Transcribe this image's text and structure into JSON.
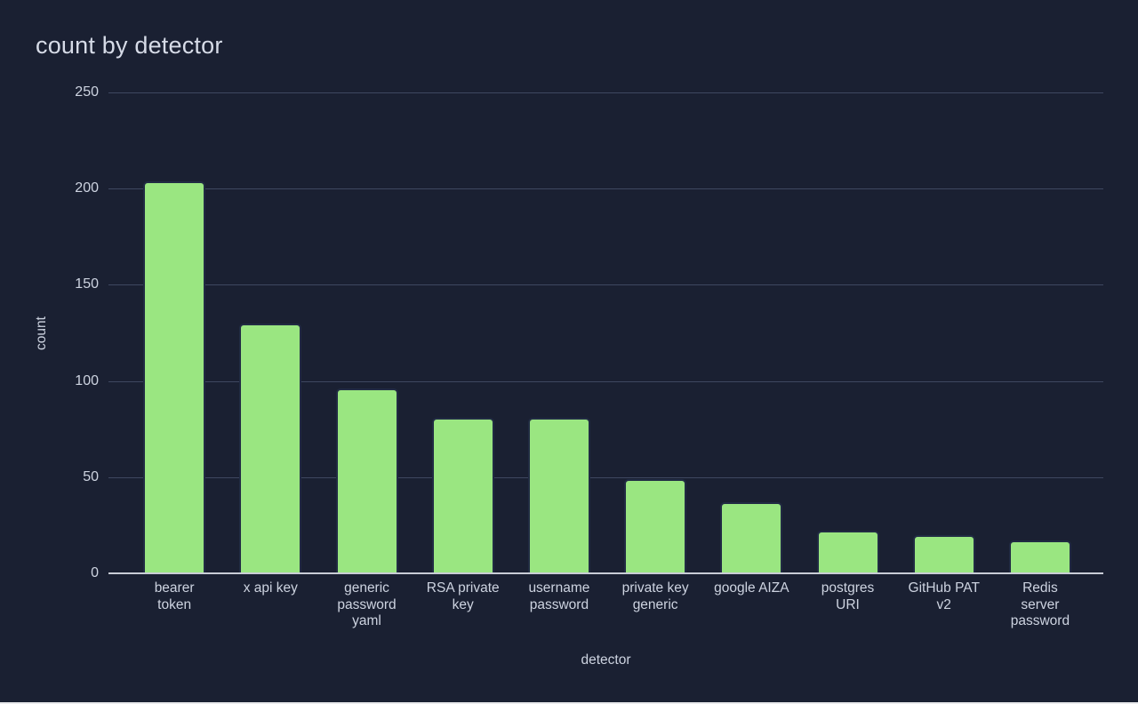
{
  "page": {
    "background": "#1a2032"
  },
  "chart_data": {
    "type": "bar",
    "title": "count by detector",
    "xlabel": "detector",
    "ylabel": "count",
    "categories": [
      "bearer token",
      "x api key",
      "generic password yaml",
      "RSA private key",
      "username password",
      "private key generic",
      "google AIZA",
      "postgres URI",
      "GitHub PAT v2",
      "Redis server password"
    ],
    "category_display": [
      "bearer\ntoken",
      "x api key",
      "generic\npassword\nyaml",
      "RSA private\nkey",
      "username\npassword",
      "private key\ngeneric",
      "google AIZA",
      "postgres\nURI",
      "GitHub PAT\nv2",
      "Redis\nserver\npassword"
    ],
    "values": [
      204,
      130,
      96,
      81,
      81,
      49,
      37,
      22,
      20,
      17
    ],
    "ylim": [
      0,
      250
    ],
    "yticks": [
      0,
      50,
      100,
      150,
      200,
      250
    ],
    "grid": true,
    "legend": "none",
    "colors": {
      "bar": "#9ae681",
      "bar_border": "#212b43",
      "background": "#1a2032",
      "gridline": "#3e4760",
      "axis_line": "#c9cdd6",
      "tick_text": "#cdd3e0",
      "title_text": "#d6dbe7"
    }
  }
}
